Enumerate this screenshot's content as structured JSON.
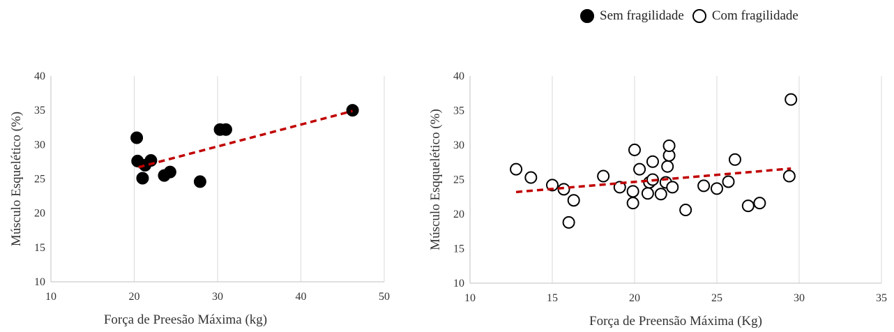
{
  "legend": [
    {
      "label": "Sem fragilidade",
      "style": "filled"
    },
    {
      "label": "Com fragilidade",
      "style": "hollow"
    }
  ],
  "chart_data": [
    {
      "type": "scatter",
      "series_name": "Sem fragilidade",
      "xlabel": "Força de Preesão Máxima (kg)",
      "ylabel": "Músculo Esquelético (%)",
      "xlim": [
        10,
        50
      ],
      "ylim": [
        10,
        40
      ],
      "xticks": [
        10,
        20,
        30,
        40,
        50
      ],
      "yticks": [
        10,
        15,
        20,
        25,
        30,
        35,
        40
      ],
      "grid": "vertical",
      "marker": {
        "fill": "#000000",
        "stroke": "#000000"
      },
      "trendline": {
        "color": "#c00000",
        "style": "dashed",
        "x": [
          20.5,
          46.2
        ],
        "y": [
          26.7,
          34.9
        ]
      },
      "points": [
        {
          "x": 20.3,
          "y": 31.0
        },
        {
          "x": 20.4,
          "y": 27.6
        },
        {
          "x": 21.0,
          "y": 25.1
        },
        {
          "x": 21.3,
          "y": 27.0
        },
        {
          "x": 22.0,
          "y": 27.7
        },
        {
          "x": 23.6,
          "y": 25.5
        },
        {
          "x": 24.3,
          "y": 26.0
        },
        {
          "x": 27.9,
          "y": 24.6
        },
        {
          "x": 30.3,
          "y": 32.2
        },
        {
          "x": 31.0,
          "y": 32.2
        },
        {
          "x": 46.2,
          "y": 35.0
        }
      ]
    },
    {
      "type": "scatter",
      "series_name": "Com fragilidade",
      "xlabel": "Força de Preensão Máxima (Kg)",
      "ylabel": "Músculo Esqquelético (%)",
      "xlim": [
        10,
        35
      ],
      "ylim": [
        10,
        40
      ],
      "xticks": [
        10,
        15,
        20,
        25,
        30,
        35
      ],
      "yticks": [
        10,
        15,
        20,
        25,
        30,
        35,
        40
      ],
      "grid": "vertical",
      "marker": {
        "fill": "#ffffff",
        "stroke": "#000000"
      },
      "trendline": {
        "color": "#c00000",
        "style": "dashed",
        "x": [
          12.8,
          29.5
        ],
        "y": [
          23.2,
          26.6
        ]
      },
      "points": [
        {
          "x": 12.8,
          "y": 26.5
        },
        {
          "x": 13.7,
          "y": 25.3
        },
        {
          "x": 15.0,
          "y": 24.2
        },
        {
          "x": 15.7,
          "y": 23.6
        },
        {
          "x": 16.0,
          "y": 18.8
        },
        {
          "x": 16.3,
          "y": 22.0
        },
        {
          "x": 18.1,
          "y": 25.5
        },
        {
          "x": 19.1,
          "y": 23.9
        },
        {
          "x": 19.9,
          "y": 23.3
        },
        {
          "x": 19.9,
          "y": 21.6
        },
        {
          "x": 20.0,
          "y": 29.3
        },
        {
          "x": 20.3,
          "y": 26.5
        },
        {
          "x": 20.8,
          "y": 23.0
        },
        {
          "x": 20.9,
          "y": 24.6
        },
        {
          "x": 21.1,
          "y": 25.0
        },
        {
          "x": 21.1,
          "y": 27.6
        },
        {
          "x": 21.6,
          "y": 22.9
        },
        {
          "x": 21.9,
          "y": 24.6
        },
        {
          "x": 22.0,
          "y": 26.9
        },
        {
          "x": 22.1,
          "y": 28.5
        },
        {
          "x": 22.1,
          "y": 29.9
        },
        {
          "x": 22.3,
          "y": 23.9
        },
        {
          "x": 23.1,
          "y": 20.6
        },
        {
          "x": 24.2,
          "y": 24.1
        },
        {
          "x": 25.0,
          "y": 23.7
        },
        {
          "x": 25.7,
          "y": 24.7
        },
        {
          "x": 26.1,
          "y": 27.9
        },
        {
          "x": 26.9,
          "y": 21.2
        },
        {
          "x": 27.6,
          "y": 21.6
        },
        {
          "x": 29.4,
          "y": 25.5
        },
        {
          "x": 29.5,
          "y": 36.6
        }
      ]
    }
  ]
}
